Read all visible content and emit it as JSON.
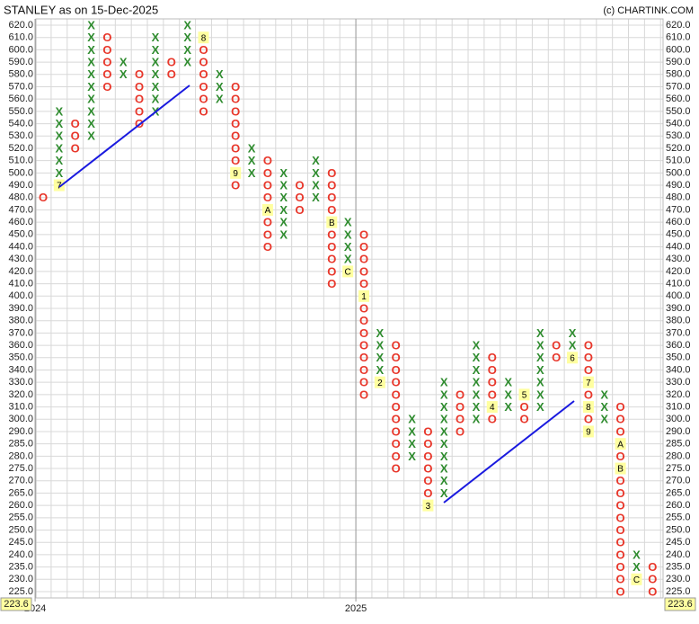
{
  "chart_data": {
    "type": "point_and_figure",
    "title": "STANLEY as on 15-Dec-2025",
    "source": "(c) CHARTINK.COM",
    "x_color": "#2e8b2e",
    "o_color": "#e8372b",
    "marker_color": "#ffffa0",
    "grid": true,
    "last_price": 223.6,
    "yticks": [
      {
        "value": 620,
        "label": "620.0"
      },
      {
        "value": 610,
        "label": "610.0"
      },
      {
        "value": 600,
        "label": "600.0"
      },
      {
        "value": 590,
        "label": "590.0"
      },
      {
        "value": 580,
        "label": "580.0"
      },
      {
        "value": 570,
        "label": "570.0"
      },
      {
        "value": 560,
        "label": "560.0"
      },
      {
        "value": 550,
        "label": "550.0"
      },
      {
        "value": 540,
        "label": "540.0"
      },
      {
        "value": 530,
        "label": "530.0"
      },
      {
        "value": 520,
        "label": "520.0"
      },
      {
        "value": 510,
        "label": "510.0"
      },
      {
        "value": 500,
        "label": "500.0"
      },
      {
        "value": 490,
        "label": "490.0"
      },
      {
        "value": 480,
        "label": "480.0"
      },
      {
        "value": 470,
        "label": "470.0"
      },
      {
        "value": 460,
        "label": "460.0"
      },
      {
        "value": 450,
        "label": "450.0"
      },
      {
        "value": 440,
        "label": "440.0"
      },
      {
        "value": 430,
        "label": "430.0"
      },
      {
        "value": 420,
        "label": "420.0"
      },
      {
        "value": 410,
        "label": "410.0"
      },
      {
        "value": 400,
        "label": "400.0"
      },
      {
        "value": 390,
        "label": "390.0"
      },
      {
        "value": 380,
        "label": "380.0"
      },
      {
        "value": 370,
        "label": "370.0"
      },
      {
        "value": 360,
        "label": "360.0"
      },
      {
        "value": 350,
        "label": "350.0"
      },
      {
        "value": 340,
        "label": "340.0"
      },
      {
        "value": 330,
        "label": "330.0"
      },
      {
        "value": 320,
        "label": "320.0"
      },
      {
        "value": 310,
        "label": "310.0"
      },
      {
        "value": 300,
        "label": "300.0"
      },
      {
        "value": 290,
        "label": "290.0"
      },
      {
        "value": 285,
        "label": "285.0"
      },
      {
        "value": 280,
        "label": "280.0"
      },
      {
        "value": 275,
        "label": "275.0"
      },
      {
        "value": 270,
        "label": "270.0"
      },
      {
        "value": 265,
        "label": "265.0"
      },
      {
        "value": 260,
        "label": "260.0"
      },
      {
        "value": 255,
        "label": "255.0"
      },
      {
        "value": 250,
        "label": "250.0"
      },
      {
        "value": 245,
        "label": "245.0"
      },
      {
        "value": 240,
        "label": "240.0"
      },
      {
        "value": 235,
        "label": "235.0"
      },
      {
        "value": 230,
        "label": "230.0"
      },
      {
        "value": 225,
        "label": "225.0"
      }
    ],
    "x_labels": [
      {
        "label": "2024",
        "column": 0
      },
      {
        "label": "2025",
        "column": 20
      }
    ],
    "columns": [
      {
        "box": "O",
        "low": 480,
        "high": 480
      },
      {
        "box": "X",
        "low": 490,
        "high": 550,
        "markers": [
          {
            "price": 490,
            "label": "7"
          }
        ]
      },
      {
        "box": "O",
        "low": 520,
        "high": 540
      },
      {
        "box": "X",
        "low": 530,
        "high": 620
      },
      {
        "box": "O",
        "low": 570,
        "high": 610
      },
      {
        "box": "X",
        "low": 580,
        "high": 590
      },
      {
        "box": "O",
        "low": 540,
        "high": 580
      },
      {
        "box": "X",
        "low": 550,
        "high": 610
      },
      {
        "box": "O",
        "low": 580,
        "high": 590
      },
      {
        "box": "X",
        "low": 590,
        "high": 620
      },
      {
        "box": "O",
        "low": 550,
        "high": 610,
        "markers": [
          {
            "price": 610,
            "label": "8"
          }
        ]
      },
      {
        "box": "X",
        "low": 560,
        "high": 580
      },
      {
        "box": "O",
        "low": 490,
        "high": 570,
        "markers": [
          {
            "price": 500,
            "label": "9"
          }
        ]
      },
      {
        "box": "X",
        "low": 500,
        "high": 520
      },
      {
        "box": "O",
        "low": 440,
        "high": 510,
        "markers": [
          {
            "price": 470,
            "label": "A"
          }
        ]
      },
      {
        "box": "X",
        "low": 450,
        "high": 500
      },
      {
        "box": "O",
        "low": 470,
        "high": 490
      },
      {
        "box": "X",
        "low": 480,
        "high": 510
      },
      {
        "box": "O",
        "low": 410,
        "high": 500,
        "markers": [
          {
            "price": 460,
            "label": "B"
          }
        ]
      },
      {
        "box": "X",
        "low": 420,
        "high": 460,
        "markers": [
          {
            "price": 420,
            "label": "C"
          }
        ]
      },
      {
        "box": "O",
        "low": 320,
        "high": 450,
        "markers": [
          {
            "price": 400,
            "label": "1"
          }
        ]
      },
      {
        "box": "X",
        "low": 330,
        "high": 370,
        "markers": [
          {
            "price": 330,
            "label": "2"
          }
        ]
      },
      {
        "box": "O",
        "low": 275,
        "high": 360
      },
      {
        "box": "X",
        "low": 280,
        "high": 300
      },
      {
        "box": "O",
        "low": 260,
        "high": 290,
        "markers": [
          {
            "price": 260,
            "label": "3"
          }
        ]
      },
      {
        "box": "X",
        "low": 265,
        "high": 330
      },
      {
        "box": "O",
        "low": 290,
        "high": 320
      },
      {
        "box": "X",
        "low": 300,
        "high": 360
      },
      {
        "box": "O",
        "low": 300,
        "high": 350,
        "markers": [
          {
            "price": 310,
            "label": "4"
          }
        ]
      },
      {
        "box": "X",
        "low": 310,
        "high": 330
      },
      {
        "box": "O",
        "low": 300,
        "high": 320,
        "markers": [
          {
            "price": 320,
            "label": "5"
          }
        ]
      },
      {
        "box": "X",
        "low": 310,
        "high": 370
      },
      {
        "box": "O",
        "low": 350,
        "high": 360
      },
      {
        "box": "X",
        "low": 350,
        "high": 370,
        "markers": [
          {
            "price": 350,
            "label": "6"
          }
        ]
      },
      {
        "box": "O",
        "low": 290,
        "high": 360,
        "markers": [
          {
            "price": 330,
            "label": "7"
          },
          {
            "price": 310,
            "label": "8"
          },
          {
            "price": 290,
            "label": "9"
          }
        ]
      },
      {
        "box": "X",
        "low": 300,
        "high": 320
      },
      {
        "box": "O",
        "low": 225,
        "high": 310,
        "markers": [
          {
            "price": 285,
            "label": "A"
          },
          {
            "price": 275,
            "label": "B"
          }
        ]
      },
      {
        "box": "X",
        "low": 230,
        "high": 240,
        "markers": [
          {
            "price": 230,
            "label": "C"
          }
        ]
      },
      {
        "box": "O",
        "low": 225,
        "high": 235
      }
    ]
  }
}
